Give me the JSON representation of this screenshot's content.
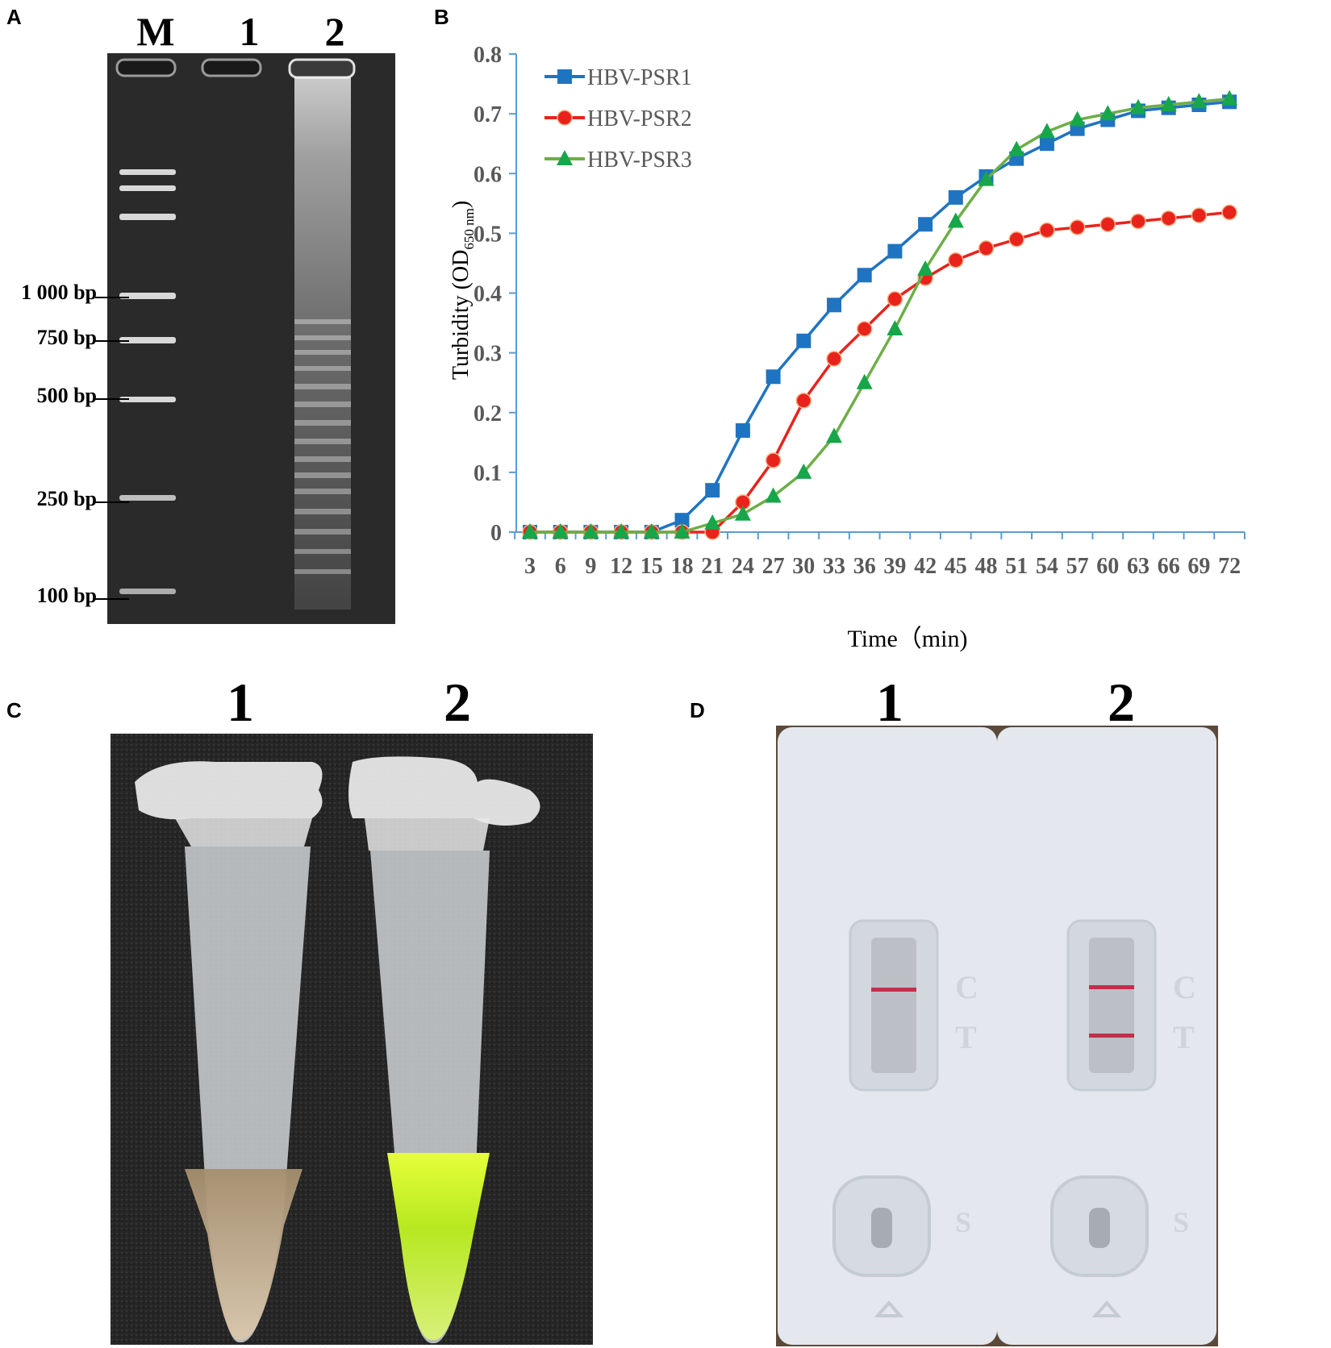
{
  "panelA": {
    "label": "A",
    "lanes": [
      "M",
      "1",
      "2"
    ],
    "markers": [
      "1 000 bp",
      "750 bp",
      "500 bp",
      "250 bp",
      "100 bp"
    ]
  },
  "panelB": {
    "label": "B"
  },
  "panelC": {
    "label": "C",
    "tubes": [
      "1",
      "2"
    ]
  },
  "panelD": {
    "label": "D",
    "cassettes": [
      "1",
      "2"
    ],
    "cassette_marks": {
      "c": "C",
      "t": "T",
      "s": "S"
    }
  },
  "chart_data": {
    "type": "line",
    "xlabel": "Time（min)",
    "ylabel": "Turbidity (OD",
    "ylabel_sub": "650 nm",
    "ylabel_end": ")",
    "x": [
      3,
      6,
      9,
      12,
      15,
      18,
      21,
      24,
      27,
      30,
      33,
      36,
      39,
      42,
      45,
      48,
      51,
      54,
      57,
      60,
      63,
      66,
      69,
      72
    ],
    "ylim": [
      0,
      0.8
    ],
    "yticks": [
      0,
      0.1,
      0.2,
      0.3,
      0.4,
      0.5,
      0.6,
      0.7,
      0.8
    ],
    "legend_position": "top-left",
    "series": [
      {
        "name": "HBV-PSR1",
        "color": "#1F74C1",
        "marker": "square",
        "values": [
          0,
          0,
          0,
          0,
          0,
          0.02,
          0.07,
          0.17,
          0.26,
          0.32,
          0.38,
          0.43,
          0.47,
          0.515,
          0.56,
          0.595,
          0.625,
          0.65,
          0.675,
          0.69,
          0.705,
          0.71,
          0.715,
          0.72
        ]
      },
      {
        "name": "HBV-PSR2",
        "color": "#E8231C",
        "marker": "circle",
        "values": [
          0,
          0,
          0,
          0,
          0,
          0,
          0,
          0.05,
          0.12,
          0.22,
          0.29,
          0.34,
          0.39,
          0.425,
          0.455,
          0.475,
          0.49,
          0.505,
          0.51,
          0.515,
          0.52,
          0.525,
          0.53,
          0.535
        ]
      },
      {
        "name": "HBV-PSR3",
        "color": "#6DAE47",
        "marker": "triangle",
        "marker_color": "#17A64A",
        "values": [
          0,
          0,
          0,
          0,
          0,
          0,
          0.015,
          0.03,
          0.06,
          0.1,
          0.16,
          0.25,
          0.34,
          0.44,
          0.52,
          0.59,
          0.64,
          0.67,
          0.69,
          0.7,
          0.71,
          0.715,
          0.72,
          0.725
        ]
      }
    ]
  }
}
